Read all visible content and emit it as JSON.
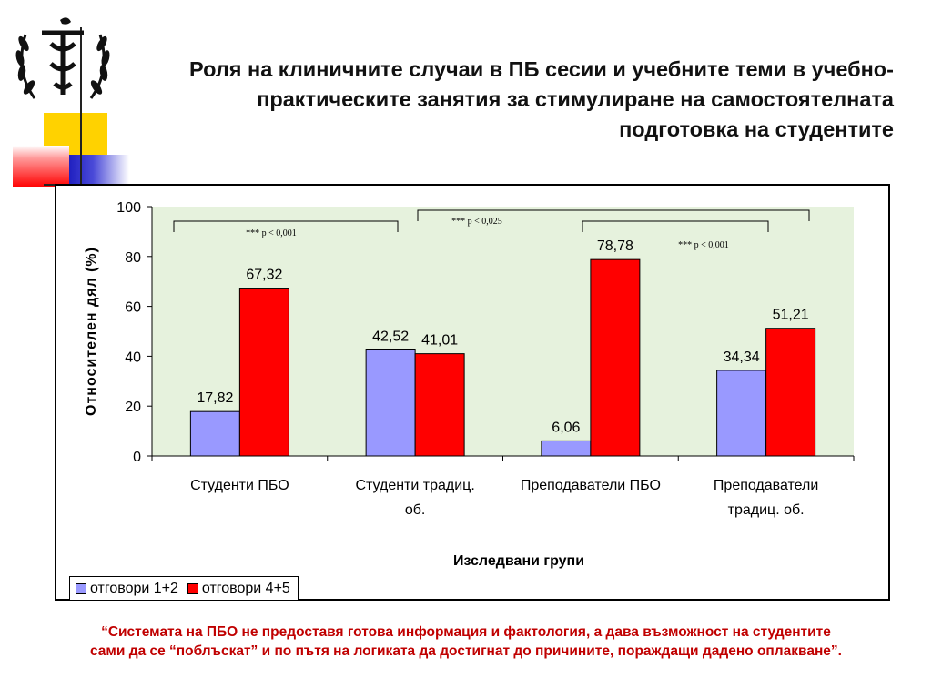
{
  "title": "Роля на клиничните случаи в ПБ сесии и учебните теми в учебно-практическите занятия за стимулиране на самостоятелната подготовка на студентите",
  "title_lines": [
    "Роля на клиничните случаи в ПБ сесии и учебните теми в учебно-",
    "практическите занятия за стимулиране на самостоятелната",
    "подготовка на студентите"
  ],
  "colors": {
    "series1": "#9999ff",
    "series2": "#ff0000",
    "plot_bg": "#e6f2dd",
    "quote": "#c00000"
  },
  "chart_data": {
    "type": "bar",
    "categories": [
      [
        "Студенти ПБО"
      ],
      [
        "Студенти традиц.",
        "об."
      ],
      [
        "Преподаватели ПБО"
      ],
      [
        "Преподаватели",
        "традиц. об."
      ]
    ],
    "series": [
      {
        "name": "отговори 1+2",
        "values": [
          17.82,
          42.52,
          6.06,
          34.34
        ],
        "labels": [
          "17,82",
          "42,52",
          "6,06",
          "34,34"
        ]
      },
      {
        "name": "отговори 4+5",
        "values": [
          67.32,
          41.01,
          78.78,
          51.21
        ],
        "labels": [
          "67,32",
          "41,01",
          "78,78",
          "51,21"
        ]
      }
    ],
    "xlabel": "Изследвани групи",
    "ylabel": "Относителен дял (%)",
    "ylim": [
      0,
      100
    ],
    "yticks": [
      0,
      20,
      40,
      60,
      80,
      100
    ],
    "grid": false,
    "legend_position": "bottom-left",
    "annotations": [
      {
        "text": "*** p < 0,001",
        "from": 0,
        "to": 1
      },
      {
        "text": "*** p < 0,025",
        "from": 1,
        "to": 3
      },
      {
        "text": "*** p < 0,001",
        "from": 2,
        "to": 3
      }
    ]
  },
  "quote_lines": [
    "“Системата на ПБО не предоставя  готова информация и фактология, а дава възможност на студентите",
    "сами да се “поблъскат” и  по пътя на логиката да достигнат до причините, пораждащи дадено оплакване”."
  ]
}
